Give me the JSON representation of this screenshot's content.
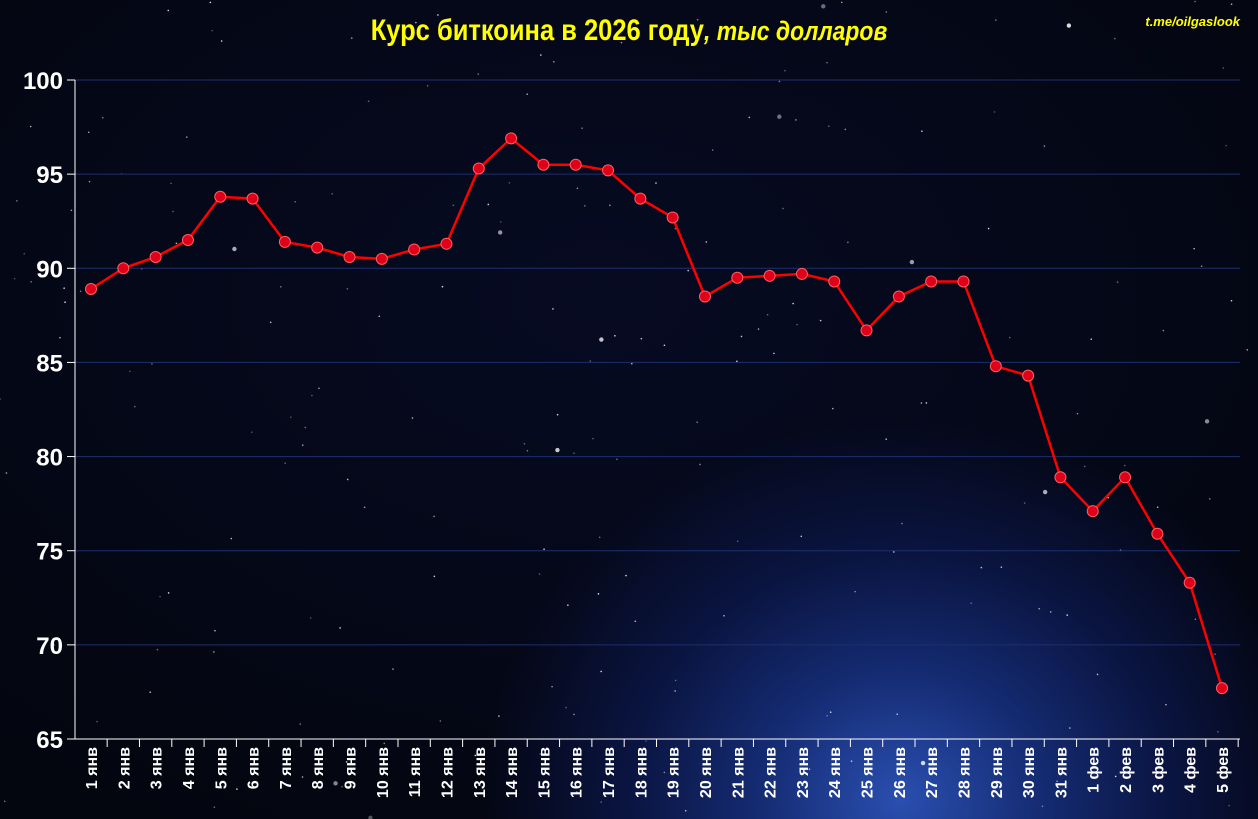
{
  "chart_data": {
    "type": "line",
    "title": "Курс биткоина в 2026 году",
    "subtitle": ", тыс долларов",
    "watermark": "t.me/oilgaslook",
    "xlabel": "",
    "ylabel": "",
    "ylim": [
      65,
      100
    ],
    "yticks": [
      65,
      70,
      75,
      80,
      85,
      90,
      95,
      100
    ],
    "grid": true,
    "line_color": "#ff0000",
    "marker_color": "#e0001a",
    "title_color": "#ffff00",
    "categories": [
      "1 янв",
      "2 янв",
      "3 янв",
      "4 янв",
      "5 янв",
      "6 янв",
      "7 янв",
      "8 янв",
      "9 янв",
      "10 янв",
      "11 янв",
      "12 янв",
      "13 янв",
      "14 янв",
      "15 янв",
      "16 янв",
      "17 янв",
      "18 янв",
      "19 янв",
      "20 янв",
      "21 янв",
      "22 янв",
      "23 янв",
      "24 янв",
      "25 янв",
      "26 янв",
      "27 янв",
      "28 янв",
      "29 янв",
      "30 янв",
      "31 янв",
      "1 фев",
      "2 фев",
      "3 фев",
      "4 фев",
      "5 фев"
    ],
    "values": [
      88.9,
      90.0,
      90.6,
      91.5,
      93.8,
      93.7,
      91.4,
      91.1,
      90.6,
      90.5,
      91.0,
      91.3,
      95.3,
      96.9,
      95.5,
      95.5,
      95.2,
      93.7,
      92.7,
      88.5,
      89.5,
      89.6,
      89.7,
      89.3,
      86.7,
      88.5,
      89.3,
      89.3,
      84.8,
      84.3,
      78.9,
      77.1,
      78.9,
      75.9,
      73.3,
      67.7
    ]
  }
}
